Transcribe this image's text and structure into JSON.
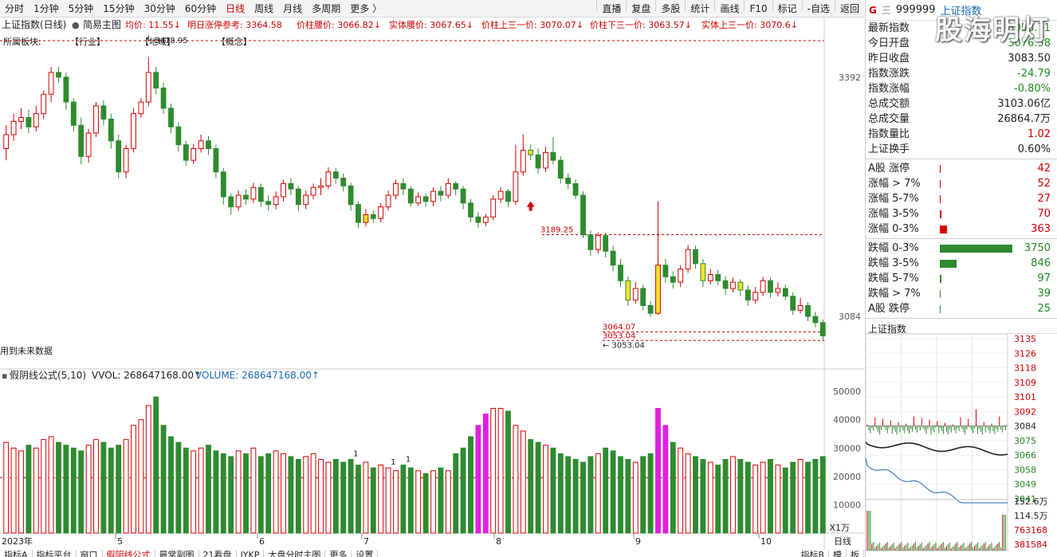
{
  "topbar": {
    "tabs": [
      "分时",
      "1分钟",
      "5分钟",
      "15分钟",
      "30分钟",
      "60分钟",
      "日线",
      "周线",
      "月线",
      "多周期",
      "更多 〉"
    ],
    "active_tab": "日线",
    "right_buttons": [
      "直播",
      "复盘",
      "多股",
      "统计",
      "画线",
      "F10",
      "标记",
      "-自选",
      "返回"
    ]
  },
  "main_chart": {
    "title": "上证指数(日线)",
    "template": "简易主图",
    "avg_price": "均价: 11.55↓",
    "next_limit": "明日涨停参考: 3364.58",
    "mid_price": "价柱腰价: 3066.82↓",
    "body_mid": "实体腰价: 3067.65↓",
    "upper_third": "价柱上三一价: 3070.07↓",
    "lower_third": "价柱下三一价: 3063.57↓",
    "body_upper_third": "实体上三一价: 3070.6↓",
    "sector_label": "所属板块:",
    "sector_industry": "【行业】",
    "sector_region": "【地域】",
    "sector_concept": "【概念】",
    "future_data_note": "用到未来数据",
    "peak_label": "3418.95",
    "level_3189": "3189.25",
    "level_3064": "3064.07",
    "level_3053a": "3053.04",
    "level_3053b": "← 3053.04",
    "axis_3392": "3392",
    "axis_3084": "3084"
  },
  "volume_chart": {
    "formula": "假阴线公式(5,10)",
    "vvol": "VVOL: 268647168.00↑",
    "volume": "VOLUME: 268647168.00↑",
    "axis_labels": [
      "50000",
      "40000",
      "30000",
      "20000",
      "10000"
    ],
    "unit": "X1万",
    "marker": "1"
  },
  "x_axis": {
    "year_label": "2023年",
    "months": [
      "5",
      "6",
      "7",
      "8",
      "9",
      "10"
    ],
    "period_label": "日线"
  },
  "bottom_tabs": [
    "指标A",
    "指标平台",
    "窗口",
    "假阴线公式",
    "最常副图",
    "21看盘",
    "JYKP",
    "大盘分时主图",
    "更多",
    "设置"
  ],
  "active_bottom_tab": "假阴线公式",
  "bottom_right_tabs": [
    "指标B",
    "模",
    "板"
  ],
  "right_panel": {
    "g": "G",
    "menu_icon": "三",
    "code": "999999",
    "name": "上证指数",
    "stats": [
      {
        "label": "最新指数",
        "value": "3058.71",
        "color": "green"
      },
      {
        "label": "今日开盘",
        "value": "3076.58",
        "color": "green"
      },
      {
        "label": "昨日收盘",
        "value": "3083.50",
        "color": "black"
      },
      {
        "label": "指数涨跌",
        "value": "-24.79",
        "color": "green"
      },
      {
        "label": "指数涨幅",
        "value": "-0.80%",
        "color": "green"
      },
      {
        "label": "总成交额",
        "value": "3103.06亿",
        "color": "black"
      },
      {
        "label": "总成交量",
        "value": "26864.7万",
        "color": "black"
      },
      {
        "label": "指数量比",
        "value": "1.02",
        "color": "red"
      },
      {
        "label": "上证换手",
        "value": "0.60%",
        "color": "black"
      }
    ],
    "up_dist": [
      {
        "label": "A股 涨停",
        "count": "42",
        "fraction": 0.011
      },
      {
        "label": "涨幅 > 7%",
        "count": "52",
        "fraction": 0.014
      },
      {
        "label": "涨幅 5-7%",
        "count": "27",
        "fraction": 0.007
      },
      {
        "label": "涨幅 3-5%",
        "count": "70",
        "fraction": 0.019
      },
      {
        "label": "涨幅 0-3%",
        "count": "363",
        "fraction": 0.097
      }
    ],
    "down_dist": [
      {
        "label": "跌幅 0-3%",
        "count": "3750",
        "fraction": 1.0
      },
      {
        "label": "跌幅 3-5%",
        "count": "846",
        "fraction": 0.226
      },
      {
        "label": "跌幅 5-7%",
        "count": "97",
        "fraction": 0.026
      },
      {
        "label": "跌幅 > 7%",
        "count": "39",
        "fraction": 0.01
      },
      {
        "label": "A股 跌停",
        "count": "25",
        "fraction": 0.007
      }
    ],
    "mini_title": "上证指数",
    "mini_axis": [
      "3135",
      "3126",
      "3118",
      "3109",
      "3101",
      "3092",
      "3084",
      "3075",
      "3066",
      "3058",
      "3049",
      "3041"
    ],
    "mini_vol_axis": [
      "152.6万",
      "114.5万",
      "763168",
      "381584"
    ]
  },
  "watermark": "股海明灯",
  "colors": {
    "up": "#d40000",
    "down": "#2e8b2e",
    "highlight_yellow": "#f2e22b",
    "magenta": "#e020e0"
  },
  "chart_data": {
    "type": "candlestick",
    "title": "上证指数(日线)",
    "ylim": [
      3040,
      3440
    ],
    "candles": [
      [
        3300,
        3318,
        3285,
        3330
      ],
      [
        3318,
        3335,
        3310,
        3345
      ],
      [
        3335,
        3340,
        3325,
        3352
      ],
      [
        3340,
        3328,
        3320,
        3350
      ],
      [
        3328,
        3345,
        3322,
        3355
      ],
      [
        3345,
        3370,
        3338,
        3375
      ],
      [
        3370,
        3398,
        3360,
        3405
      ],
      [
        3398,
        3392,
        3385,
        3405
      ],
      [
        3392,
        3360,
        3350,
        3398
      ],
      [
        3360,
        3330,
        3322,
        3365
      ],
      [
        3330,
        3290,
        3280,
        3340
      ],
      [
        3290,
        3320,
        3282,
        3325
      ],
      [
        3320,
        3355,
        3315,
        3360
      ],
      [
        3355,
        3338,
        3330,
        3362
      ],
      [
        3338,
        3310,
        3300,
        3345
      ],
      [
        3310,
        3270,
        3262,
        3318
      ],
      [
        3270,
        3300,
        3262,
        3305
      ],
      [
        3300,
        3345,
        3295,
        3352
      ],
      [
        3345,
        3360,
        3340,
        3365
      ],
      [
        3360,
        3398,
        3355,
        3418
      ],
      [
        3398,
        3378,
        3370,
        3405
      ],
      [
        3378,
        3352,
        3345,
        3385
      ],
      [
        3352,
        3328,
        3320,
        3358
      ],
      [
        3328,
        3305,
        3296,
        3334
      ],
      [
        3305,
        3285,
        3278,
        3310
      ],
      [
        3285,
        3300,
        3280,
        3306
      ],
      [
        3300,
        3310,
        3295,
        3318
      ],
      [
        3310,
        3300,
        3292,
        3316
      ],
      [
        3300,
        3270,
        3262,
        3305
      ],
      [
        3270,
        3238,
        3228,
        3275
      ],
      [
        3238,
        3225,
        3215,
        3242
      ],
      [
        3225,
        3240,
        3220,
        3246
      ],
      [
        3240,
        3235,
        3228,
        3248
      ],
      [
        3235,
        3250,
        3230,
        3256
      ],
      [
        3250,
        3232,
        3225,
        3255
      ],
      [
        3232,
        3228,
        3220,
        3240
      ],
      [
        3228,
        3238,
        3222,
        3245
      ],
      [
        3238,
        3255,
        3232,
        3260
      ],
      [
        3255,
        3248,
        3240,
        3262
      ],
      [
        3248,
        3228,
        3220,
        3252
      ],
      [
        3228,
        3240,
        3222,
        3246
      ],
      [
        3240,
        3250,
        3235,
        3255
      ],
      [
        3250,
        3252,
        3240,
        3262
      ],
      [
        3252,
        3270,
        3248,
        3276
      ],
      [
        3270,
        3262,
        3255,
        3275
      ],
      [
        3262,
        3252,
        3245,
        3268
      ],
      [
        3252,
        3228,
        3220,
        3256
      ],
      [
        3228,
        3205,
        3198,
        3232
      ],
      [
        3205,
        3215,
        3200,
        3222
      ],
      [
        3215,
        3210,
        3204,
        3220
      ],
      [
        3210,
        3225,
        3205,
        3230
      ],
      [
        3225,
        3240,
        3220,
        3246
      ],
      [
        3240,
        3255,
        3235,
        3260
      ],
      [
        3255,
        3248,
        3240,
        3262
      ],
      [
        3248,
        3230,
        3225,
        3252
      ],
      [
        3230,
        3238,
        3226,
        3244
      ],
      [
        3238,
        3232,
        3225,
        3242
      ],
      [
        3232,
        3245,
        3226,
        3250
      ],
      [
        3245,
        3240,
        3232,
        3252
      ],
      [
        3240,
        3255,
        3236,
        3262
      ],
      [
        3255,
        3248,
        3240,
        3258
      ],
      [
        3248,
        3230,
        3222,
        3252
      ],
      [
        3230,
        3212,
        3205,
        3235
      ],
      [
        3212,
        3205,
        3198,
        3218
      ],
      [
        3205,
        3212,
        3200,
        3216
      ],
      [
        3212,
        3235,
        3208,
        3240
      ],
      [
        3235,
        3245,
        3230,
        3250
      ],
      [
        3245,
        3232,
        3225,
        3248
      ],
      [
        3232,
        3270,
        3228,
        3305
      ],
      [
        3270,
        3298,
        3265,
        3318
      ],
      [
        3298,
        3292,
        3285,
        3305
      ],
      [
        3292,
        3275,
        3268,
        3300
      ],
      [
        3275,
        3295,
        3270,
        3302
      ],
      [
        3295,
        3285,
        3280,
        3315
      ],
      [
        3285,
        3262,
        3255,
        3290
      ],
      [
        3262,
        3255,
        3248,
        3268
      ],
      [
        3255,
        3240,
        3235,
        3260
      ],
      [
        3240,
        3189,
        3185,
        3245
      ],
      [
        3189,
        3170,
        3162,
        3195
      ],
      [
        3170,
        3188,
        3165,
        3192
      ],
      [
        3188,
        3168,
        3160,
        3192
      ],
      [
        3168,
        3150,
        3142,
        3175
      ],
      [
        3150,
        3130,
        3122,
        3158
      ],
      [
        3130,
        3105,
        3098,
        3135
      ],
      [
        3105,
        3120,
        3100,
        3128
      ],
      [
        3120,
        3098,
        3092,
        3125
      ],
      [
        3098,
        3088,
        3084,
        3104
      ],
      [
        3088,
        3150,
        3086,
        3232
      ],
      [
        3150,
        3135,
        3128,
        3158
      ],
      [
        3135,
        3128,
        3120,
        3142
      ],
      [
        3128,
        3145,
        3122,
        3150
      ],
      [
        3145,
        3170,
        3140,
        3176
      ],
      [
        3170,
        3152,
        3145,
        3175
      ],
      [
        3152,
        3130,
        3122,
        3158
      ],
      [
        3130,
        3138,
        3125,
        3145
      ],
      [
        3138,
        3130,
        3124,
        3144
      ],
      [
        3130,
        3120,
        3112,
        3136
      ],
      [
        3120,
        3128,
        3115,
        3134
      ],
      [
        3128,
        3118,
        3110,
        3132
      ],
      [
        3118,
        3105,
        3098,
        3124
      ],
      [
        3105,
        3115,
        3100,
        3122
      ],
      [
        3115,
        3130,
        3110,
        3135
      ],
      [
        3130,
        3115,
        3108,
        3134
      ],
      [
        3115,
        3120,
        3110,
        3128
      ],
      [
        3120,
        3110,
        3105,
        3125
      ],
      [
        3110,
        3092,
        3086,
        3115
      ],
      [
        3092,
        3098,
        3088,
        3108
      ],
      [
        3098,
        3084,
        3078,
        3102
      ],
      [
        3084,
        3076,
        3070,
        3090
      ],
      [
        3076,
        3059,
        3053,
        3080
      ]
    ],
    "volume_wan": [
      32000,
      30000,
      29000,
      31000,
      30000,
      33000,
      34000,
      32000,
      31000,
      30000,
      29000,
      31000,
      33000,
      32000,
      30000,
      31000,
      33000,
      38000,
      40000,
      45000,
      48000,
      38000,
      34000,
      32000,
      30000,
      29000,
      30000,
      31000,
      29000,
      28000,
      27000,
      29000,
      28000,
      30000,
      27000,
      28000,
      29000,
      28000,
      27000,
      26000,
      27000,
      28000,
      26000,
      25000,
      26000,
      25000,
      26000,
      24000,
      25000,
      23000,
      24000,
      23000,
      22000,
      24000,
      23000,
      22000,
      21000,
      22000,
      23000,
      22000,
      28000,
      30000,
      34000,
      38000,
      42000,
      44000,
      44000,
      43000,
      38000,
      36000,
      33000,
      32000,
      31000,
      30000,
      28000,
      27000,
      26000,
      25000,
      27000,
      28000,
      30000,
      29000,
      27000,
      26000,
      25000,
      27000,
      28000,
      44000,
      38000,
      32000,
      30000,
      28000,
      27000,
      26000,
      25000,
      24000,
      26000,
      27000,
      26000,
      25000,
      24000,
      25000,
      26000,
      24000,
      23000,
      25000,
      26000,
      25000,
      26000,
      27000
    ],
    "magenta_bars": [
      63,
      64,
      87,
      88
    ],
    "y_levels": [
      3189.25,
      3064.07,
      3053.04
    ],
    "axis_ticks": [
      3392,
      3084
    ],
    "month_ticks": [
      "5",
      "6",
      "7",
      "8",
      "9",
      "10"
    ]
  }
}
